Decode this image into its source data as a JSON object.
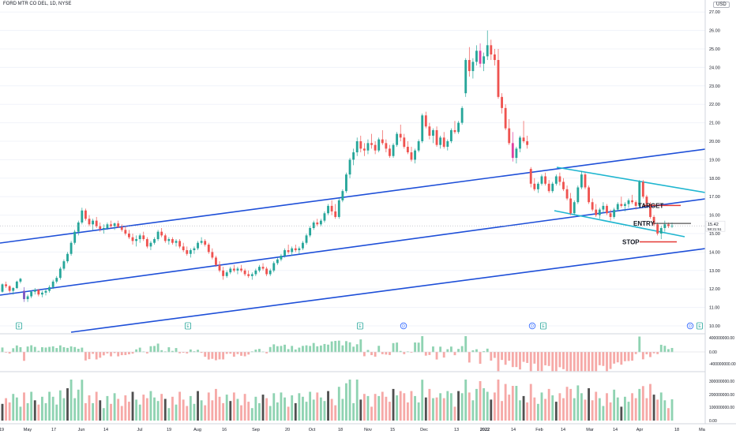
{
  "header": {
    "symbol": "FORD MTR CO DEL, 1D, NYSE",
    "currency": "USD"
  },
  "colors": {
    "up": "#26a69a",
    "up_light": "#8fd3b2",
    "down": "#ef5350",
    "down_light": "#f6a9a7",
    "channel": "#1e4fd8",
    "wedge": "#1fb6d0",
    "target_line": "#e53935",
    "pink": "#e040a0",
    "purple": "#7e57c2",
    "vol_dark": "#505050"
  },
  "chart_data": {
    "type": "candlestick",
    "yaxis": {
      "min": 10.0,
      "max": 27.0,
      "ticks": [
        "10.00",
        "11.00",
        "12.00",
        "13.00",
        "14.00",
        "15.00",
        "16.00",
        "17.00",
        "18.00",
        "19.00",
        "20.00",
        "21.00",
        "22.00",
        "23.00",
        "24.00",
        "25.00",
        "26.00",
        "27.00"
      ]
    },
    "xaxis": {
      "ticks": [
        "19",
        "May",
        "17",
        "Jun",
        "14",
        "Jul",
        "19",
        "Aug",
        "16",
        "Sep",
        "20",
        "Oct",
        "18",
        "Nov",
        "15",
        "Dec",
        "13",
        "2022",
        "14",
        "Feb",
        "14",
        "Mar",
        "14",
        "Apr",
        "18",
        "Ma"
      ]
    },
    "price_label": {
      "value": "15.42",
      "sub": "58:21:51"
    },
    "annotations": [
      {
        "text": "TARGET",
        "price": 16.52
      },
      {
        "text": "ENTRY",
        "price": 15.55
      },
      {
        "text": "STOP",
        "price": 14.55
      }
    ],
    "events": [
      "E",
      "E",
      "E",
      "D",
      "D",
      "E",
      "D",
      "E"
    ],
    "macd": {
      "ticks": [
        "400000000.00",
        "0.00",
        "-400000000.00"
      ]
    },
    "volume": {
      "ticks": [
        "300000000.00",
        "200000000.00",
        "100000000.00",
        "0.00"
      ]
    },
    "candles": [
      [
        11.85,
        12.3,
        11.8,
        12.25
      ],
      [
        12.25,
        12.4,
        12.05,
        12.15
      ],
      [
        12.15,
        12.2,
        11.8,
        11.9
      ],
      [
        11.9,
        12.1,
        11.7,
        12.05
      ],
      [
        12.05,
        12.45,
        12.0,
        12.4
      ],
      [
        12.4,
        12.6,
        12.3,
        12.55
      ],
      [
        11.9,
        12.1,
        11.3,
        11.45
      ],
      [
        11.45,
        11.7,
        11.3,
        11.6
      ],
      [
        11.6,
        11.9,
        11.5,
        11.85
      ],
      [
        11.85,
        12.05,
        11.7,
        11.95
      ],
      [
        11.95,
        12.0,
        11.6,
        11.7
      ],
      [
        11.7,
        11.9,
        11.55,
        11.8
      ],
      [
        11.8,
        12.0,
        11.65,
        11.9
      ],
      [
        11.9,
        12.2,
        11.8,
        12.1
      ],
      [
        12.1,
        12.5,
        12.0,
        12.4
      ],
      [
        12.4,
        12.7,
        12.3,
        12.6
      ],
      [
        12.6,
        13.2,
        12.5,
        13.1
      ],
      [
        13.1,
        13.6,
        13.0,
        13.5
      ],
      [
        13.5,
        14.0,
        13.4,
        13.9
      ],
      [
        13.9,
        14.6,
        13.8,
        14.5
      ],
      [
        14.5,
        15.2,
        14.4,
        15.1
      ],
      [
        15.1,
        15.7,
        14.9,
        15.6
      ],
      [
        15.6,
        16.4,
        15.5,
        16.25
      ],
      [
        16.25,
        16.35,
        15.7,
        15.8
      ],
      [
        15.8,
        16.0,
        15.4,
        15.5
      ],
      [
        15.5,
        15.8,
        15.2,
        15.7
      ],
      [
        15.7,
        15.9,
        15.3,
        15.4
      ],
      [
        15.4,
        15.6,
        15.1,
        15.25
      ],
      [
        15.25,
        15.5,
        15.0,
        15.3
      ],
      [
        15.3,
        15.6,
        15.2,
        15.5
      ],
      [
        15.5,
        15.7,
        15.3,
        15.4
      ],
      [
        15.4,
        15.6,
        15.2,
        15.55
      ],
      [
        15.55,
        15.7,
        15.3,
        15.35
      ],
      [
        15.35,
        15.5,
        15.1,
        15.2
      ],
      [
        15.2,
        15.4,
        14.9,
        15.0
      ],
      [
        15.0,
        15.2,
        14.7,
        14.8
      ],
      [
        14.8,
        15.0,
        14.4,
        14.6
      ],
      [
        14.6,
        14.9,
        14.3,
        14.7
      ],
      [
        14.7,
        15.0,
        14.5,
        14.9
      ],
      [
        14.9,
        15.1,
        14.6,
        14.7
      ],
      [
        14.7,
        14.8,
        14.2,
        14.3
      ],
      [
        14.3,
        14.6,
        14.1,
        14.5
      ],
      [
        14.5,
        14.8,
        14.4,
        14.7
      ],
      [
        14.7,
        15.2,
        14.6,
        15.1
      ],
      [
        15.1,
        15.3,
        14.8,
        14.9
      ],
      [
        14.9,
        15.0,
        14.5,
        14.6
      ],
      [
        14.6,
        14.8,
        14.4,
        14.7
      ],
      [
        14.7,
        14.8,
        14.4,
        14.5
      ],
      [
        14.5,
        14.7,
        14.3,
        14.6
      ],
      [
        14.6,
        14.7,
        14.2,
        14.3
      ],
      [
        14.3,
        14.5,
        14.0,
        14.1
      ],
      [
        14.1,
        14.3,
        13.8,
        13.9
      ],
      [
        13.9,
        14.2,
        13.7,
        14.1
      ],
      [
        14.1,
        14.3,
        13.9,
        14.2
      ],
      [
        14.2,
        14.6,
        14.1,
        14.5
      ],
      [
        14.5,
        14.8,
        14.4,
        14.6
      ],
      [
        14.6,
        14.7,
        14.3,
        14.4
      ],
      [
        14.4,
        14.5,
        13.9,
        14.0
      ],
      [
        14.0,
        14.2,
        13.6,
        13.7
      ],
      [
        13.7,
        13.8,
        13.2,
        13.3
      ],
      [
        13.3,
        13.5,
        12.9,
        13.0
      ],
      [
        13.0,
        13.2,
        12.5,
        12.7
      ],
      [
        12.7,
        13.0,
        12.6,
        12.9
      ],
      [
        12.9,
        13.2,
        12.8,
        13.1
      ],
      [
        13.1,
        13.3,
        12.9,
        13.0
      ],
      [
        13.0,
        13.2,
        12.8,
        13.1
      ],
      [
        13.1,
        13.3,
        12.9,
        13.0
      ],
      [
        13.0,
        13.1,
        12.7,
        12.8
      ],
      [
        12.8,
        13.0,
        12.6,
        12.7
      ],
      [
        12.7,
        12.9,
        12.5,
        12.8
      ],
      [
        12.8,
        13.1,
        12.7,
        13.0
      ],
      [
        13.0,
        13.3,
        12.9,
        13.2
      ],
      [
        13.2,
        13.4,
        13.0,
        13.1
      ],
      [
        13.1,
        13.2,
        12.7,
        12.8
      ],
      [
        12.8,
        13.1,
        12.7,
        13.0
      ],
      [
        13.0,
        13.5,
        12.9,
        13.4
      ],
      [
        13.4,
        13.7,
        13.3,
        13.6
      ],
      [
        13.6,
        13.9,
        13.5,
        13.8
      ],
      [
        13.8,
        14.2,
        13.7,
        14.1
      ],
      [
        14.1,
        14.4,
        13.9,
        14.0
      ],
      [
        14.0,
        14.3,
        13.8,
        14.2
      ],
      [
        14.2,
        14.4,
        14.0,
        14.1
      ],
      [
        14.1,
        14.3,
        13.9,
        14.2
      ],
      [
        14.2,
        14.6,
        14.1,
        14.5
      ],
      [
        14.5,
        15.0,
        14.4,
        14.9
      ],
      [
        14.9,
        15.4,
        14.8,
        15.3
      ],
      [
        15.3,
        15.7,
        15.2,
        15.6
      ],
      [
        15.6,
        15.8,
        15.4,
        15.5
      ],
      [
        15.5,
        15.8,
        15.4,
        15.7
      ],
      [
        15.7,
        16.2,
        15.6,
        16.1
      ],
      [
        16.1,
        16.6,
        16.0,
        16.5
      ],
      [
        16.5,
        16.8,
        16.0,
        16.2
      ],
      [
        16.2,
        16.6,
        15.8,
        15.9
      ],
      [
        15.9,
        16.9,
        15.8,
        16.8
      ],
      [
        16.8,
        17.4,
        16.7,
        17.3
      ],
      [
        17.3,
        18.3,
        17.2,
        18.2
      ],
      [
        18.2,
        19.1,
        18.0,
        19.0
      ],
      [
        19.0,
        19.6,
        18.7,
        19.4
      ],
      [
        19.4,
        20.2,
        19.2,
        20.0
      ],
      [
        20.0,
        20.3,
        19.4,
        19.6
      ],
      [
        19.6,
        19.9,
        19.2,
        19.5
      ],
      [
        19.5,
        20.1,
        19.3,
        19.9
      ],
      [
        19.9,
        20.4,
        19.6,
        19.8
      ],
      [
        19.8,
        20.0,
        19.3,
        19.5
      ],
      [
        19.5,
        20.2,
        19.4,
        20.1
      ],
      [
        20.1,
        20.6,
        19.8,
        19.9
      ],
      [
        19.9,
        20.1,
        19.4,
        19.6
      ],
      [
        19.6,
        19.8,
        19.1,
        19.2
      ],
      [
        19.2,
        19.9,
        19.1,
        19.8
      ],
      [
        19.8,
        20.5,
        19.7,
        20.4
      ],
      [
        20.4,
        20.9,
        20.0,
        20.2
      ],
      [
        20.2,
        20.4,
        19.6,
        19.7
      ],
      [
        19.7,
        20.0,
        19.3,
        19.4
      ],
      [
        19.4,
        19.7,
        18.9,
        19.0
      ],
      [
        19.0,
        19.6,
        18.8,
        19.5
      ],
      [
        19.5,
        20.1,
        19.4,
        20.0
      ],
      [
        20.0,
        21.5,
        19.9,
        21.4
      ],
      [
        21.4,
        21.6,
        20.7,
        20.8
      ],
      [
        20.8,
        21.0,
        20.1,
        20.3
      ],
      [
        20.3,
        20.7,
        19.9,
        20.6
      ],
      [
        20.6,
        20.8,
        19.7,
        19.8
      ],
      [
        19.8,
        20.3,
        19.6,
        20.2
      ],
      [
        20.2,
        20.5,
        19.6,
        19.7
      ],
      [
        19.7,
        20.1,
        19.5,
        20.0
      ],
      [
        20.0,
        20.7,
        19.9,
        20.6
      ],
      [
        20.6,
        21.1,
        20.4,
        20.5
      ],
      [
        20.5,
        21.1,
        20.4,
        21.0
      ],
      [
        21.0,
        21.9,
        20.9,
        21.8
      ],
      [
        22.6,
        24.5,
        22.4,
        24.4
      ],
      [
        24.4,
        25.1,
        23.5,
        23.8
      ],
      [
        23.8,
        24.5,
        23.4,
        24.3
      ],
      [
        24.3,
        25.2,
        24.1,
        24.9
      ],
      [
        24.9,
        25.3,
        24.0,
        24.2
      ],
      [
        24.2,
        24.8,
        23.8,
        24.6
      ],
      [
        24.6,
        26.0,
        24.4,
        25.2
      ],
      [
        25.2,
        25.5,
        24.4,
        24.7
      ],
      [
        24.7,
        25.0,
        24.1,
        24.4
      ],
      [
        24.4,
        25.0,
        22.3,
        22.4
      ],
      [
        22.4,
        22.6,
        21.5,
        21.8
      ],
      [
        21.8,
        22.0,
        20.6,
        20.7
      ],
      [
        20.7,
        21.2,
        19.8,
        19.9
      ],
      [
        19.9,
        20.5,
        18.9,
        19.1
      ],
      [
        19.1,
        19.7,
        18.8,
        19.6
      ],
      [
        19.6,
        20.3,
        19.4,
        20.2
      ],
      [
        20.2,
        21.1,
        19.9,
        20.0
      ],
      [
        20.0,
        20.3,
        19.6,
        19.8
      ],
      [
        18.5,
        18.6,
        17.5,
        17.7
      ],
      [
        17.7,
        18.0,
        17.3,
        17.4
      ],
      [
        17.4,
        17.8,
        17.2,
        17.7
      ],
      [
        17.7,
        18.2,
        17.6,
        18.1
      ],
      [
        18.1,
        18.3,
        17.6,
        17.7
      ],
      [
        17.7,
        17.9,
        17.2,
        17.3
      ],
      [
        17.3,
        17.8,
        17.2,
        17.7
      ],
      [
        17.7,
        18.2,
        17.6,
        18.1
      ],
      [
        18.1,
        18.3,
        17.6,
        17.8
      ],
      [
        17.8,
        18.0,
        17.3,
        17.4
      ],
      [
        17.4,
        17.6,
        16.8,
        16.9
      ],
      [
        16.9,
        17.2,
        16.0,
        16.1
      ],
      [
        16.1,
        16.8,
        16.0,
        16.7
      ],
      [
        16.7,
        17.6,
        16.6,
        17.5
      ],
      [
        17.5,
        18.4,
        17.4,
        18.2
      ],
      [
        18.2,
        18.3,
        17.4,
        17.5
      ],
      [
        17.5,
        17.6,
        16.6,
        16.7
      ],
      [
        16.7,
        16.9,
        16.2,
        16.3
      ],
      [
        16.3,
        16.6,
        15.9,
        16.0
      ],
      [
        16.0,
        16.4,
        15.8,
        16.3
      ],
      [
        16.3,
        16.7,
        16.1,
        16.5
      ],
      [
        16.5,
        16.6,
        16.0,
        16.1
      ],
      [
        16.1,
        16.3,
        15.7,
        15.9
      ],
      [
        15.9,
        16.4,
        15.8,
        16.3
      ],
      [
        16.3,
        16.7,
        16.2,
        16.6
      ],
      [
        16.6,
        17.0,
        16.4,
        16.5
      ],
      [
        16.5,
        16.7,
        16.2,
        16.6
      ],
      [
        16.6,
        16.9,
        16.4,
        16.8
      ],
      [
        16.8,
        17.1,
        16.6,
        16.7
      ],
      [
        16.7,
        16.8,
        16.3,
        16.5
      ],
      [
        16.5,
        17.9,
        16.4,
        17.8
      ],
      [
        17.8,
        17.9,
        16.9,
        17.0
      ],
      [
        17.0,
        17.1,
        16.5,
        16.6
      ],
      [
        16.6,
        16.7,
        15.8,
        15.9
      ],
      [
        15.9,
        16.0,
        15.4,
        15.5
      ],
      [
        15.5,
        15.6,
        14.9,
        15.0
      ],
      [
        15.0,
        15.4,
        14.7,
        15.3
      ],
      [
        15.3,
        15.7,
        15.1,
        15.5
      ],
      [
        15.5,
        15.6,
        15.3,
        15.4
      ],
      [
        15.4,
        15.6,
        15.3,
        15.42
      ]
    ]
  }
}
